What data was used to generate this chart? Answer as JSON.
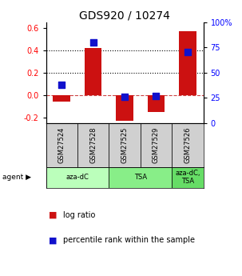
{
  "title": "GDS920 / 10274",
  "samples": [
    "GSM27524",
    "GSM27528",
    "GSM27525",
    "GSM27529",
    "GSM27526"
  ],
  "log_ratios": [
    -0.06,
    0.42,
    -0.23,
    -0.15,
    0.57
  ],
  "percentile_ranks": [
    38,
    80,
    26,
    27,
    70
  ],
  "agent_groups": [
    {
      "label": "aza-dC",
      "start": 0,
      "end": 2,
      "color": "#bbffbb"
    },
    {
      "label": "TSA",
      "start": 2,
      "end": 4,
      "color": "#88ee88"
    },
    {
      "label": "aza-dC,\nTSA",
      "start": 4,
      "end": 5,
      "color": "#66dd66"
    }
  ],
  "ylim_left": [
    -0.25,
    0.65
  ],
  "ylim_right": [
    0,
    100
  ],
  "yticks_left": [
    -0.2,
    0.0,
    0.2,
    0.4,
    0.6
  ],
  "yticks_right": [
    0,
    25,
    50,
    75,
    100
  ],
  "bar_color": "#cc1111",
  "dot_color": "#1111cc",
  "background_color": "#ffffff",
  "title_fontsize": 10,
  "tick_fontsize": 7,
  "legend_fontsize": 7,
  "bar_width": 0.55,
  "dot_size": 28
}
